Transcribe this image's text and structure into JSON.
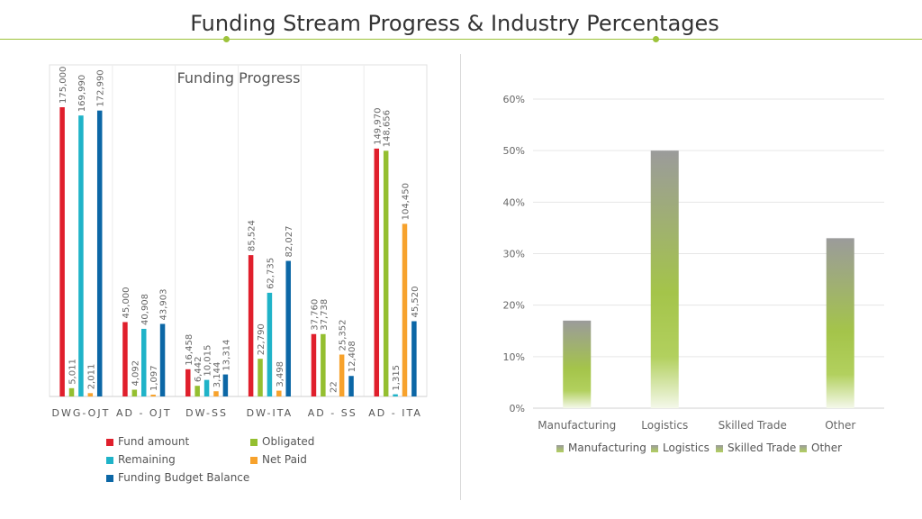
{
  "title": "Funding Stream Progress & Industry Percentages",
  "colors": {
    "accent": "#9dc33b",
    "fund_amount": "#e01f2c",
    "obligated": "#94bf30",
    "remaining": "#1fb3c8",
    "net_paid": "#f7a22c",
    "funding_budget_balance": "#0c67a6"
  },
  "chart_data": [
    {
      "type": "bar",
      "title": "Funding Progress",
      "categories": [
        "DWG-OJT",
        "AD - OJT",
        "DW-SS",
        "DW-ITA",
        "AD - SS",
        "AD - ITA"
      ],
      "ylim": [
        0,
        200000
      ],
      "series": [
        {
          "name": "Fund  amount",
          "values": [
            175000,
            45000,
            16458,
            85524,
            37760,
            149970
          ],
          "labels": [
            "175,000",
            "45,000",
            "16,458",
            "85,524",
            "37,760",
            "149,970"
          ]
        },
        {
          "name": "Obligated",
          "values": [
            5011,
            4092,
            6442,
            22790,
            37738,
            148656
          ],
          "labels": [
            "5,011",
            "4,092",
            "6,442",
            "22,790",
            "37,738",
            "148,656"
          ]
        },
        {
          "name": "Remaining",
          "values": [
            169990,
            40908,
            10015,
            62735,
            22,
            1315
          ],
          "labels": [
            "169,990",
            "40,908",
            "10,015",
            "62,735",
            "22",
            "1,315"
          ]
        },
        {
          "name": "Net Paid",
          "values": [
            2011,
            1097,
            3144,
            3498,
            25352,
            104450
          ],
          "labels": [
            "2,011",
            "1,097",
            "3,144",
            "3,498",
            "25,352",
            "104,450"
          ]
        },
        {
          "name": "Funding Budget Balance",
          "values": [
            172990,
            43903,
            13314,
            82027,
            12408,
            45520
          ],
          "labels": [
            "172,990",
            "43,903",
            "13,314",
            "82,027",
            "12,408",
            "45,520"
          ]
        }
      ],
      "legend": [
        "Fund  amount",
        "Obligated",
        "Remaining",
        "Net Paid",
        "Funding Budget Balance"
      ]
    },
    {
      "type": "bar",
      "title": "",
      "categories": [
        "Manufacturing",
        "Logistics",
        "Skilled Trade",
        "Other"
      ],
      "values": [
        17,
        50,
        0,
        33
      ],
      "ylim": [
        0,
        60
      ],
      "yticks": [
        "0%",
        "10%",
        "20%",
        "30%",
        "40%",
        "50%",
        "60%"
      ],
      "gridlines": true,
      "legend": [
        "Manufacturing",
        "Logistics",
        "Skilled Trade",
        "Other"
      ]
    }
  ]
}
